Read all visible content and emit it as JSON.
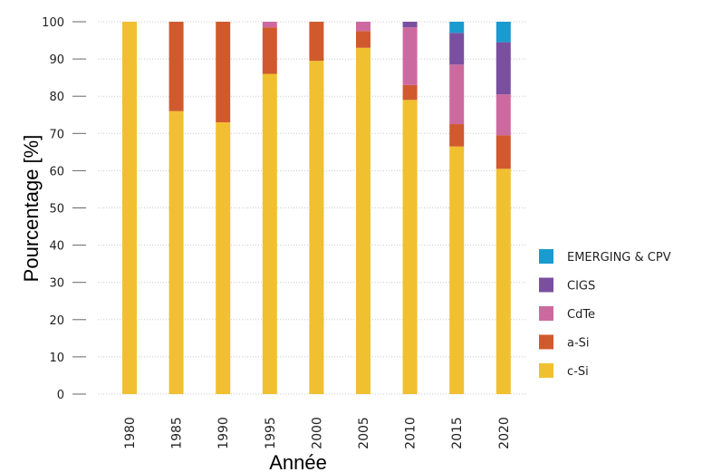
{
  "chart_data": {
    "type": "bar",
    "stacked": true,
    "categories": [
      "1980",
      "1985",
      "1990",
      "1995",
      "2000",
      "2005",
      "2010",
      "2015",
      "2020"
    ],
    "series": [
      {
        "name": "c-Si",
        "color": "#F0C030",
        "values": [
          100,
          76,
          73,
          86,
          89.5,
          93,
          79,
          66.5,
          60.5
        ]
      },
      {
        "name": "a-Si",
        "color": "#D05A2E",
        "values": [
          0,
          24,
          27,
          12.5,
          10.5,
          4.5,
          4,
          6,
          9
        ]
      },
      {
        "name": "CdTe",
        "color": "#CC6AA0",
        "values": [
          0,
          0,
          0,
          1.5,
          0,
          2.5,
          15.5,
          16,
          11
        ]
      },
      {
        "name": "CIGS",
        "color": "#7A4FA0",
        "values": [
          0,
          0,
          0,
          0,
          0,
          0,
          1.5,
          8.5,
          14
        ]
      },
      {
        "name": "EMERGING & CPV",
        "color": "#1A9BD0",
        "values": [
          0,
          0,
          0,
          0,
          0,
          0,
          0,
          3,
          5.5
        ]
      }
    ],
    "xlabel": "Année",
    "ylabel": "Pourcentage [%]",
    "ylim": [
      0,
      100
    ],
    "yticks": [
      0,
      10,
      20,
      30,
      40,
      50,
      60,
      70,
      80,
      90,
      100
    ],
    "grid": true,
    "legend": "right"
  }
}
